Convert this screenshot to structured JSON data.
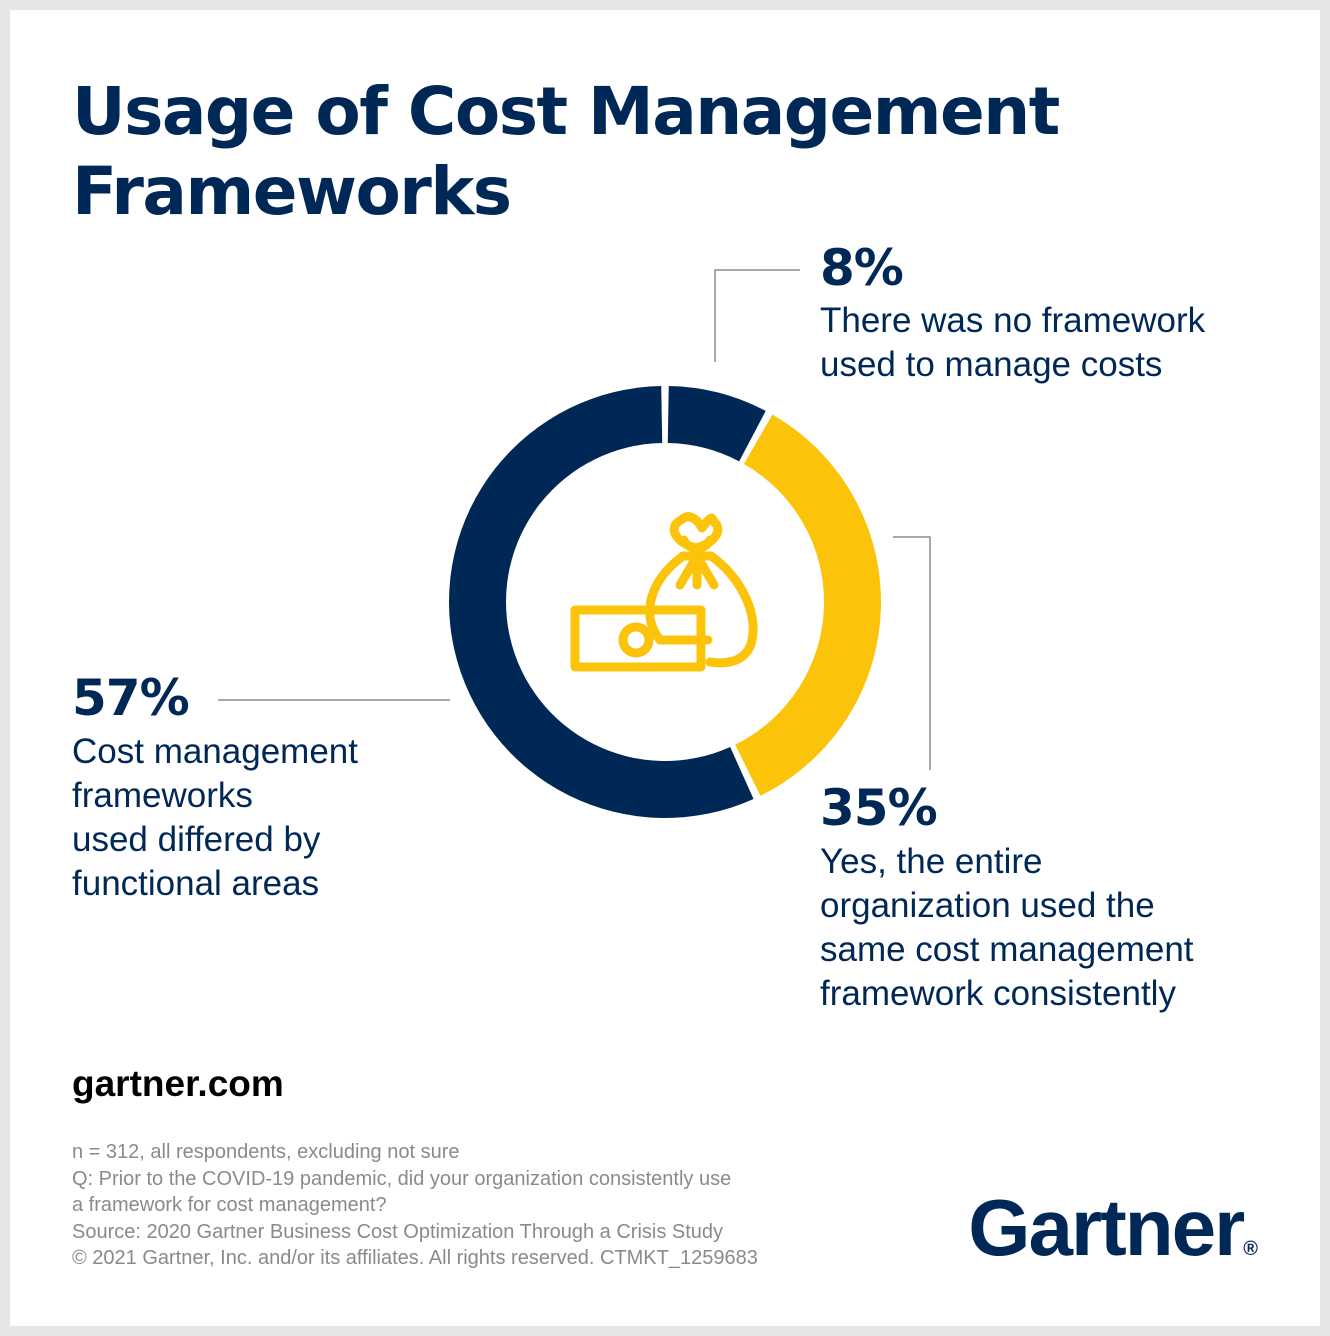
{
  "title_lines": [
    "Usage of Cost Management",
    "Frameworks"
  ],
  "chart_data": {
    "type": "pie",
    "title": "Usage of Cost Management Frameworks",
    "donut": true,
    "slices": [
      {
        "value": 8,
        "label": "8%",
        "description": [
          "There was no framework",
          "used to manage costs"
        ],
        "color": "#002856"
      },
      {
        "value": 35,
        "label": "35%",
        "description": [
          "Yes, the entire",
          "organization used the",
          "same cost management",
          "framework consistently"
        ],
        "color": "#fcc30b"
      },
      {
        "value": 57,
        "label": "57%",
        "description": [
          "Cost management",
          "frameworks",
          "used differed by",
          "functional areas"
        ],
        "color": "#002856"
      }
    ],
    "center_icon": "money-bag-and-bill-icon"
  },
  "footer": {
    "site": "gartner.com",
    "notes": [
      "n = 312, all respondents, excluding not sure",
      "Q: Prior to the COVID-19 pandemic, did your organization consistently use",
      "a framework for cost management?",
      "Source: 2020 Gartner Business Cost Optimization Through a Crisis Study",
      "© 2021 Gartner, Inc. and/or its affiliates. All rights reserved. CTMKT_1259683"
    ],
    "logo_text": "Gartner",
    "logo_mark": "®"
  },
  "colors": {
    "navy": "#002856",
    "gold": "#fcc30b",
    "leader": "#8c8c8c"
  }
}
